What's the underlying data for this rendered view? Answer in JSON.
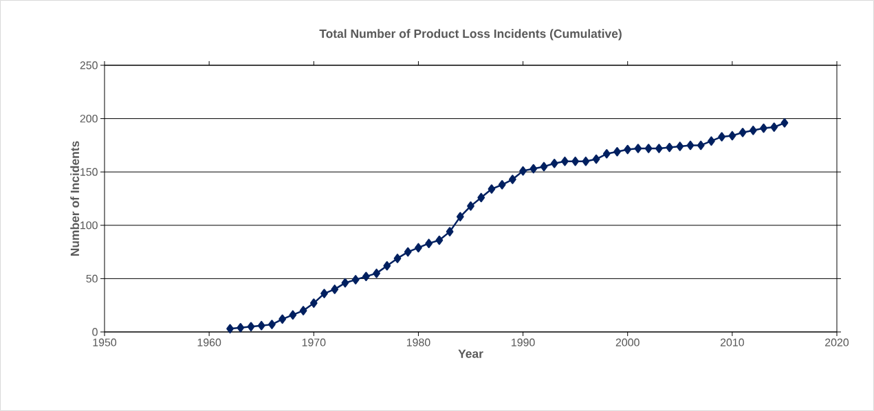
{
  "chart_data": {
    "type": "line",
    "title": "Total Number of Product Loss Incidents (Cumulative)",
    "xlabel": "Year",
    "ylabel": "Number of Incidents",
    "x": [
      1962,
      1963,
      1964,
      1965,
      1966,
      1967,
      1968,
      1969,
      1970,
      1971,
      1972,
      1973,
      1974,
      1975,
      1976,
      1977,
      1978,
      1979,
      1980,
      1981,
      1982,
      1983,
      1984,
      1985,
      1986,
      1987,
      1988,
      1989,
      1990,
      1991,
      1992,
      1993,
      1994,
      1995,
      1996,
      1997,
      1998,
      1999,
      2000,
      2001,
      2002,
      2003,
      2004,
      2005,
      2006,
      2007,
      2008,
      2009,
      2010,
      2011,
      2012,
      2013,
      2014,
      2015
    ],
    "series": [
      {
        "color": "#002060",
        "values": [
          3,
          4,
          5,
          6,
          7,
          12,
          16,
          20,
          27,
          36,
          40,
          46,
          49,
          52,
          55,
          62,
          69,
          75,
          79,
          83,
          86,
          94,
          108,
          118,
          126,
          134,
          138,
          143,
          151,
          153,
          155,
          158,
          160,
          160,
          160,
          162,
          167,
          169,
          171,
          172,
          172,
          172,
          173,
          174,
          175,
          175,
          179,
          183,
          184,
          187,
          189,
          191,
          192,
          196
        ]
      }
    ],
    "xlim": [
      1950,
      2020
    ],
    "ylim": [
      0,
      250
    ],
    "xticks": [
      1950,
      1960,
      1970,
      1980,
      1990,
      2000,
      2010,
      2020
    ],
    "yticks": [
      0,
      50,
      100,
      150,
      200,
      250
    ],
    "grid": "y",
    "marker": "diamond",
    "line_style": "solid"
  }
}
